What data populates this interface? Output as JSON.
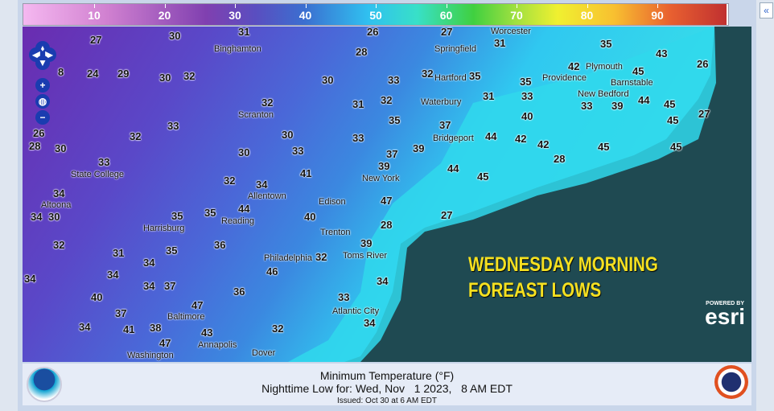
{
  "legend": {
    "ticks": [
      "10",
      "20",
      "30",
      "40",
      "50",
      "60",
      "70",
      "80",
      "90"
    ],
    "colors": [
      "#f5b8f0",
      "#8040b0",
      "#30c0f0",
      "#40d040",
      "#f0f030",
      "#e86030",
      "#c03030"
    ]
  },
  "collapse_icon": "double-chevron-left-icon",
  "map": {
    "colors": {
      "land_cold": "#6a3cb0",
      "land_mid": "#4a5ed0",
      "coast": "#30d8e8",
      "ocean": "#1f4a52"
    },
    "cities": [
      "Binghamton",
      "Scranton",
      "Allentown",
      "Reading",
      "Harrisburg",
      "State College",
      "Altoona",
      "Philadelphia",
      "Trenton",
      "Toms River",
      "Edison",
      "New York",
      "Bridgeport",
      "Waterbury",
      "Springfield",
      "Hartford",
      "Worcester",
      "Providence",
      "Plymouth",
      "New Bedford",
      "Barnstable",
      "Atlantic City",
      "Baltimore",
      "Washington",
      "Dover",
      "Annapolis"
    ],
    "temps": [
      "27",
      "30",
      "31",
      "26",
      "27",
      "31",
      "35",
      "43",
      "26",
      "28",
      "30",
      "24",
      "29",
      "32",
      "30",
      "33",
      "32",
      "35",
      "35",
      "42",
      "45",
      "8",
      "26",
      "31",
      "32",
      "31",
      "33",
      "33",
      "39",
      "44",
      "45",
      "28",
      "32",
      "33",
      "32",
      "30",
      "33",
      "35",
      "37",
      "40",
      "42",
      "45",
      "27",
      "30",
      "33",
      "30",
      "33",
      "37",
      "39",
      "44",
      "42",
      "45",
      "45",
      "30",
      "32",
      "34",
      "41",
      "39",
      "44",
      "45",
      "28",
      "34",
      "35",
      "44",
      "47",
      "27",
      "34",
      "35",
      "40",
      "28",
      "32",
      "31",
      "34",
      "35",
      "36",
      "39",
      "32",
      "34",
      "34",
      "37",
      "34",
      "36",
      "46",
      "33",
      "34",
      "40",
      "37",
      "47",
      "32",
      "34",
      "34",
      "41",
      "38",
      "43",
      "47"
    ],
    "overlay": [
      "WEDNESDAY MORNING",
      "FOREAST LOWS"
    ],
    "attribution": {
      "powered_by": "POWERED BY",
      "name": "esri"
    }
  },
  "caption": {
    "title": "Minimum Temperature (°F)",
    "valid": "Nighttime Low for: Wed, Nov   1 2023,   8 AM EDT",
    "issued": "Issued: Oct 30 at 6 AM EDT"
  }
}
